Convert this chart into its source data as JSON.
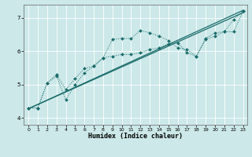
{
  "xlabel": "Humidex (Indice chaleur)",
  "bg_color": "#cce8e8",
  "line_color": "#1a6b6b",
  "grid_color": "#ffffff",
  "xlim": [
    -0.5,
    23.5
  ],
  "ylim": [
    3.8,
    7.4
  ],
  "yticks": [
    4,
    5,
    6,
    7
  ],
  "xticks": [
    0,
    1,
    2,
    3,
    4,
    5,
    6,
    7,
    8,
    9,
    10,
    11,
    12,
    13,
    14,
    15,
    16,
    17,
    18,
    19,
    20,
    21,
    22,
    23
  ],
  "line1_x": [
    0,
    1,
    2,
    3,
    4,
    5,
    6,
    7,
    8,
    9,
    10,
    11,
    12,
    13,
    14,
    15,
    16,
    17,
    18,
    19,
    20,
    21,
    22,
    23
  ],
  "line1_y": [
    4.3,
    4.3,
    5.05,
    5.25,
    4.55,
    5.0,
    5.35,
    5.55,
    5.8,
    6.35,
    6.38,
    6.38,
    6.62,
    6.55,
    6.45,
    6.32,
    6.1,
    6.05,
    5.85,
    6.38,
    6.55,
    6.58,
    6.95,
    7.2
  ],
  "line2_x": [
    0,
    1,
    2,
    3,
    4,
    5,
    6,
    7,
    8,
    9,
    10,
    11,
    12,
    13,
    14,
    15,
    16,
    17,
    18,
    19,
    20,
    21,
    22,
    23
  ],
  "line2_y": [
    4.3,
    4.3,
    5.05,
    5.3,
    4.85,
    5.18,
    5.48,
    5.55,
    5.8,
    5.85,
    5.9,
    5.9,
    5.95,
    6.05,
    6.1,
    6.22,
    6.25,
    5.95,
    5.85,
    6.35,
    6.45,
    6.58,
    6.58,
    7.2
  ],
  "trend1_x": [
    0,
    23
  ],
  "trend1_y": [
    4.28,
    7.22
  ],
  "trend2_x": [
    0,
    23
  ],
  "trend2_y": [
    4.28,
    7.15
  ]
}
